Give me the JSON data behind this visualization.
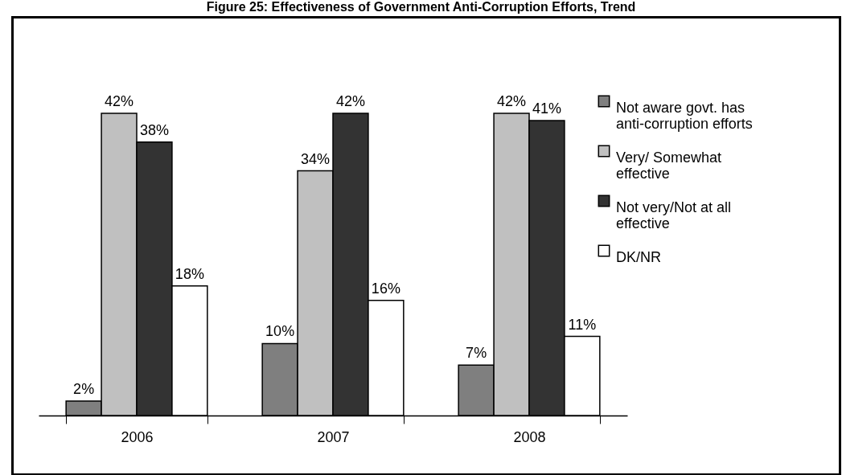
{
  "chart_data": {
    "type": "bar",
    "title": "Figure 25: Effectiveness of Government Anti-Corruption Efforts, Trend",
    "categories": [
      "2006",
      "2007",
      "2008"
    ],
    "series": [
      {
        "name": "Not aware govt. has anti-corruption efforts",
        "color": "#7f7f7f",
        "values": [
          2,
          10,
          7
        ],
        "value_labels": [
          "2%",
          "10%",
          "7%"
        ]
      },
      {
        "name": "Very/ Somewhat effective",
        "color": "#c0c0c0",
        "values": [
          42,
          34,
          42
        ],
        "value_labels": [
          "42%",
          "34%",
          "42%"
        ]
      },
      {
        "name": "Not very/Not at all effective",
        "color": "#333333",
        "values": [
          38,
          42,
          41
        ],
        "value_labels": [
          "38%",
          "42%",
          "41%"
        ]
      },
      {
        "name": "DK/NR",
        "color": "#ffffff",
        "values": [
          18,
          16,
          11
        ],
        "value_labels": [
          "18%",
          "16%",
          "11%"
        ]
      }
    ],
    "legend": "right"
  }
}
